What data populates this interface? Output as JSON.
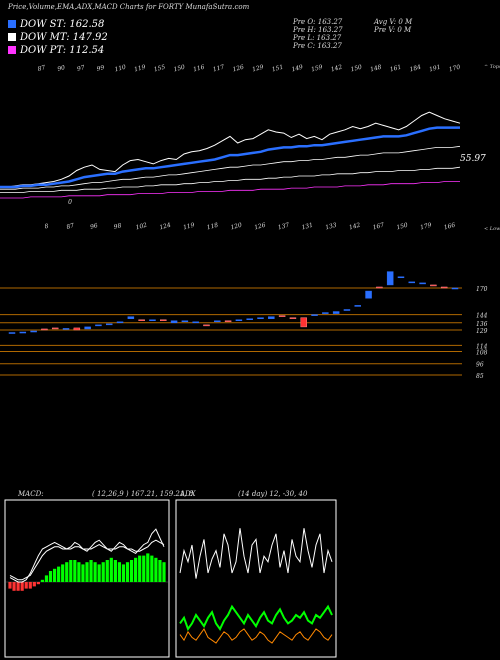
{
  "title": "Price,Volume,EMA,ADX,MACD Charts for FORTY MunafaSutra.com",
  "legend": [
    {
      "label": "DOW ST: 162.58",
      "color": "#2a6fff"
    },
    {
      "label": "DOW MT: 147.92",
      "color": "#ffffff"
    },
    {
      "label": "DOW PT: 112.54",
      "color": "#ff33ff"
    }
  ],
  "info": {
    "o": "Pre O: 163.27",
    "h": "Pre H: 163.27",
    "l": "Pre L: 163.27",
    "c": "Pre C: 163.27",
    "avgv": "Avg V: 0 M",
    "prev": "Pre V: 0 M"
  },
  "colors": {
    "blue": "#2a6fff",
    "white": "#ffffff",
    "magenta": "#ff33ff",
    "orange": "#ff8800",
    "green": "#00ff00",
    "red": "#ff3333",
    "axis": "#b06800"
  },
  "chart_data": [
    {
      "type": "line",
      "name": "price_ema",
      "top_labels": [
        "87",
        "90",
        "97",
        "99",
        "110",
        "119",
        "155",
        "150",
        "116",
        "117",
        "126",
        "129",
        "151",
        "149",
        "159",
        "142",
        "150",
        "148",
        "161",
        "184",
        "191",
        "170"
      ],
      "top_label_right": "^ Tops",
      "bottom_labels": [
        "0",
        "8",
        "87",
        "96",
        "98",
        "102",
        "124",
        "119",
        "118",
        "120",
        "126",
        "137",
        "131",
        "133",
        "142",
        "167",
        "150",
        "179",
        "166"
      ],
      "bottom_label_right": "< Lows",
      "last_value_label": "55.97",
      "series": [
        {
          "color": "white",
          "values": [
            60,
            60,
            61,
            62,
            62,
            63,
            64,
            65,
            67,
            70,
            75,
            78,
            80,
            76,
            75,
            74,
            80,
            84,
            85,
            83,
            81,
            84,
            86,
            85,
            90,
            92,
            93,
            95,
            98,
            102,
            106,
            100,
            103,
            104,
            108,
            112,
            110,
            109,
            105,
            108,
            104,
            106,
            103,
            108,
            110,
            112,
            115,
            113,
            115,
            118,
            116,
            114,
            112,
            115,
            120,
            125,
            128,
            125,
            122,
            120,
            118
          ]
        },
        {
          "color": "blue",
          "values": [
            60,
            60,
            60,
            61,
            61,
            62,
            62,
            63,
            64,
            65,
            67,
            69,
            70,
            71,
            72,
            72,
            74,
            75,
            76,
            77,
            77,
            78,
            79,
            80,
            81,
            82,
            83,
            84,
            85,
            87,
            89,
            89,
            90,
            91,
            92,
            94,
            95,
            96,
            96,
            97,
            97,
            98,
            98,
            99,
            100,
            101,
            102,
            103,
            104,
            105,
            106,
            106,
            106,
            107,
            109,
            111,
            113,
            114,
            114,
            114,
            114
          ]
        },
        {
          "color": "white",
          "values": [
            58,
            58,
            58,
            59,
            59,
            59,
            60,
            60,
            61,
            61,
            62,
            63,
            64,
            64,
            65,
            66,
            67,
            67,
            68,
            69,
            69,
            70,
            71,
            71,
            72,
            73,
            74,
            75,
            76,
            77,
            78,
            78,
            79,
            80,
            80,
            81,
            82,
            83,
            83,
            84,
            84,
            85,
            85,
            86,
            87,
            87,
            88,
            89,
            89,
            90,
            91,
            91,
            91,
            92,
            93,
            94,
            95,
            96,
            96,
            96,
            97
          ]
        },
        {
          "color": "white",
          "values": [
            55,
            55,
            55,
            55,
            56,
            56,
            56,
            56,
            57,
            57,
            57,
            58,
            58,
            58,
            59,
            59,
            60,
            60,
            60,
            61,
            61,
            62,
            62,
            62,
            63,
            63,
            64,
            64,
            65,
            65,
            66,
            66,
            67,
            67,
            67,
            68,
            68,
            69,
            69,
            70,
            70,
            70,
            71,
            71,
            72,
            72,
            72,
            73,
            73,
            74,
            74,
            74,
            75,
            75,
            75,
            76,
            76,
            77,
            77,
            77,
            78
          ]
        },
        {
          "color": "magenta",
          "values": [
            50,
            50,
            50,
            50,
            51,
            51,
            51,
            51,
            51,
            52,
            52,
            52,
            52,
            52,
            53,
            53,
            53,
            53,
            54,
            54,
            54,
            54,
            55,
            55,
            55,
            55,
            56,
            56,
            56,
            56,
            57,
            57,
            57,
            57,
            58,
            58,
            58,
            58,
            59,
            59,
            59,
            60,
            60,
            60,
            60,
            61,
            61,
            61,
            62,
            62,
            62,
            63,
            63,
            63,
            63,
            64,
            64,
            64,
            65,
            65,
            65
          ]
        }
      ]
    },
    {
      "type": "table",
      "name": "price_levels",
      "levels": [
        {
          "value": 170,
          "label": "170"
        },
        {
          "value": 144,
          "label": "144"
        },
        {
          "value": 136,
          "label": "136"
        },
        {
          "value": 129,
          "label": "129"
        },
        {
          "value": 114,
          "label": "114"
        },
        {
          "value": 108,
          "label": "108"
        },
        {
          "value": 96,
          "label": "96"
        },
        {
          "value": 85,
          "label": "85"
        }
      ],
      "candles": [
        {
          "o": 126,
          "c": 126.5
        },
        {
          "o": 126,
          "c": 127
        },
        {
          "o": 127,
          "c": 128
        },
        {
          "o": 130,
          "c": 129
        },
        {
          "o": 131,
          "c": 130.5
        },
        {
          "o": 130,
          "c": 130.5
        },
        {
          "o": 131,
          "c": 129
        },
        {
          "o": 130,
          "c": 132
        },
        {
          "o": 133,
          "c": 134
        },
        {
          "o": 134,
          "c": 135
        },
        {
          "o": 136,
          "c": 137
        },
        {
          "o": 140,
          "c": 142
        },
        {
          "o": 139,
          "c": 138
        },
        {
          "o": 138,
          "c": 139
        },
        {
          "o": 139,
          "c": 138
        },
        {
          "o": 136,
          "c": 138
        },
        {
          "o": 137,
          "c": 138
        },
        {
          "o": 136,
          "c": 137
        },
        {
          "o": 134,
          "c": 133
        },
        {
          "o": 137,
          "c": 138
        },
        {
          "o": 138,
          "c": 137
        },
        {
          "o": 138,
          "c": 139
        },
        {
          "o": 139,
          "c": 140
        },
        {
          "o": 140,
          "c": 141
        },
        {
          "o": 140,
          "c": 142
        },
        {
          "o": 143,
          "c": 142
        },
        {
          "o": 141,
          "c": 140
        },
        {
          "o": 141,
          "c": 132
        },
        {
          "o": 143,
          "c": 144
        },
        {
          "o": 145,
          "c": 146
        },
        {
          "o": 145,
          "c": 147
        },
        {
          "o": 148,
          "c": 149
        },
        {
          "o": 152,
          "c": 153
        },
        {
          "o": 160,
          "c": 167
        },
        {
          "o": 171,
          "c": 170
        },
        {
          "o": 173,
          "c": 186
        },
        {
          "o": 180,
          "c": 181
        },
        {
          "o": 176,
          "c": 176
        },
        {
          "o": 174,
          "c": 175
        },
        {
          "o": 173,
          "c": 172
        },
        {
          "o": 171,
          "c": 170
        },
        {
          "o": 170,
          "c": 170
        }
      ]
    },
    {
      "type": "line",
      "name": "macd",
      "title": "MACD:",
      "params": "( 12,26,9 ) 167.21, 159.21, 8",
      "histogram": [
        -3,
        -4,
        -4,
        -4,
        -3,
        -3,
        -2,
        -1,
        1,
        3,
        5,
        6,
        7,
        8,
        9,
        10,
        10,
        9,
        8,
        9,
        10,
        9,
        8,
        9,
        10,
        11,
        10,
        9,
        8,
        9,
        10,
        11,
        12,
        12,
        13,
        12,
        11,
        10,
        9
      ],
      "series": [
        {
          "color": "white",
          "values": [
            2,
            1,
            0,
            0,
            1,
            4,
            8,
            12,
            15,
            16,
            17,
            18,
            17,
            16,
            15,
            16,
            18,
            17,
            15,
            14,
            16,
            18,
            19,
            17,
            15,
            14,
            16,
            18,
            17,
            15,
            14,
            13,
            15,
            17,
            18,
            22,
            24,
            20,
            16
          ]
        },
        {
          "color": "white",
          "values": [
            3,
            2,
            1,
            1,
            2,
            3,
            6,
            9,
            12,
            14,
            15,
            16,
            16,
            15,
            15,
            15,
            16,
            16,
            15,
            15,
            15,
            16,
            17,
            16,
            15,
            15,
            15,
            16,
            16,
            15,
            15,
            14,
            14,
            15,
            16,
            18,
            19,
            18,
            17
          ]
        }
      ]
    },
    {
      "type": "line",
      "name": "adx",
      "title": "ADX",
      "params": "(14 day) 12, -30, 40",
      "series": [
        {
          "color": "white",
          "values": [
            30,
            38,
            34,
            40,
            28,
            36,
            42,
            30,
            35,
            38,
            32,
            44,
            40,
            30,
            34,
            46,
            36,
            30,
            40,
            42,
            30,
            36,
            34,
            40,
            44,
            32,
            38,
            30,
            42,
            36,
            34,
            46,
            38,
            32,
            40,
            44,
            30,
            38,
            34
          ]
        },
        {
          "color": "green",
          "values": [
            12,
            14,
            10,
            12,
            15,
            13,
            11,
            14,
            16,
            12,
            10,
            13,
            15,
            18,
            16,
            14,
            12,
            15,
            13,
            11,
            14,
            16,
            13,
            12,
            15,
            17,
            14,
            12,
            13,
            15,
            14,
            16,
            13,
            12,
            15,
            14,
            16,
            18,
            15
          ]
        },
        {
          "color": "orange",
          "values": [
            8,
            6,
            9,
            7,
            6,
            8,
            10,
            7,
            6,
            5,
            7,
            9,
            8,
            6,
            7,
            9,
            10,
            8,
            6,
            7,
            9,
            8,
            6,
            5,
            7,
            9,
            8,
            7,
            6,
            8,
            9,
            7,
            6,
            8,
            10,
            9,
            7,
            6,
            8
          ]
        }
      ]
    }
  ]
}
